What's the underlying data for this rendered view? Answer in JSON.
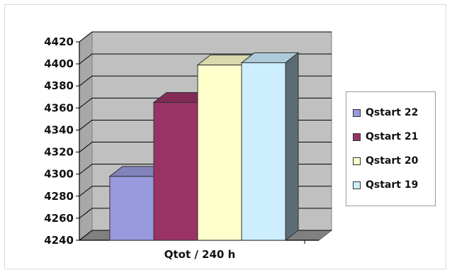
{
  "chart_data": {
    "type": "bar",
    "title": "",
    "xlabel": "Qtot / 240 h",
    "ylabel": "",
    "categories": [
      "Qtot / 240 h"
    ],
    "series": [
      {
        "name": "Qstart 22",
        "values": [
          4298
        ],
        "color": "#9999dd"
      },
      {
        "name": "Qstart 21",
        "values": [
          4365
        ],
        "color": "#993366"
      },
      {
        "name": "Qstart 20",
        "values": [
          4399
        ],
        "color": "#ffffcc"
      },
      {
        "name": "Qstart 19",
        "values": [
          4401
        ],
        "color": "#cceeff"
      }
    ],
    "yticks": [
      "4240",
      "4260",
      "4280",
      "4300",
      "4320",
      "4340",
      "4360",
      "4380",
      "4400",
      "4420"
    ],
    "ylim": [
      4240,
      4420
    ],
    "grid": true,
    "legend_position": "right",
    "wall_color": "#c0c0c0",
    "floor_color": "#808080"
  }
}
